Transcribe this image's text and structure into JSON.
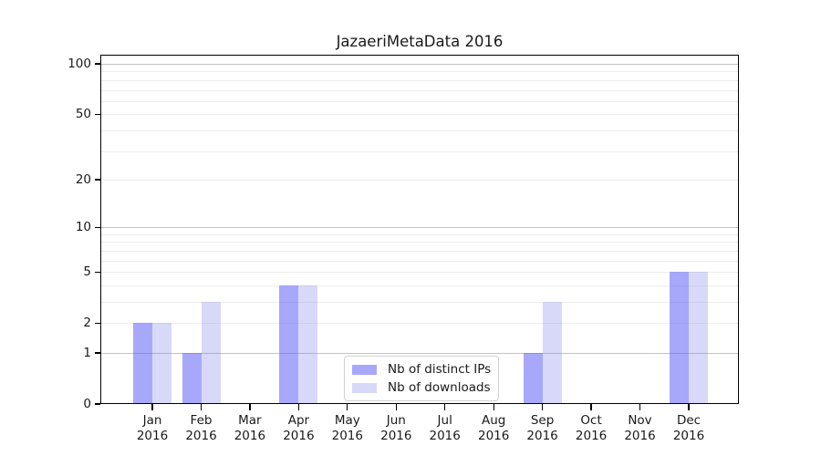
{
  "chart_data": {
    "type": "bar",
    "title": "JazaeriMetaData 2016",
    "categories": [
      "Jan",
      "Feb",
      "Mar",
      "Apr",
      "May",
      "Jun",
      "Jul",
      "Aug",
      "Sep",
      "Oct",
      "Nov",
      "Dec"
    ],
    "x_tick_second_line": "2016",
    "series": [
      {
        "name": "Nb of distinct IPs",
        "values": [
          2,
          1,
          0,
          4,
          0,
          0,
          0,
          0,
          1,
          0,
          0,
          5
        ],
        "fill": "rgba(97,97,246,0.55)"
      },
      {
        "name": "Nb of downloads",
        "values": [
          2,
          3,
          0,
          4,
          0,
          0,
          0,
          0,
          3,
          0,
          0,
          5
        ],
        "fill": "rgba(125,125,235,0.30)"
      }
    ],
    "xlabel": "",
    "ylabel": "",
    "y_axis": {
      "ticks": [
        0,
        1,
        2,
        5,
        10,
        20,
        50,
        100
      ],
      "scale": "log10(1+value)",
      "ylim": [
        0,
        113
      ],
      "major_gridlines": [
        1,
        10,
        100
      ],
      "minor_gridlines": [
        2,
        3,
        4,
        5,
        6,
        7,
        8,
        9,
        20,
        30,
        40,
        50,
        60,
        70,
        80,
        90
      ]
    },
    "grid": {
      "major_color": "#c3c3c3",
      "minor_color": "#ededed",
      "grid_on": true
    },
    "legend": {
      "position": "inside lower center",
      "entries": [
        "Nb of distinct IPs",
        "Nb of downloads"
      ]
    },
    "colors": {
      "background": "#ffffff",
      "spine": "#000000",
      "text": "#1a1a1a"
    }
  }
}
